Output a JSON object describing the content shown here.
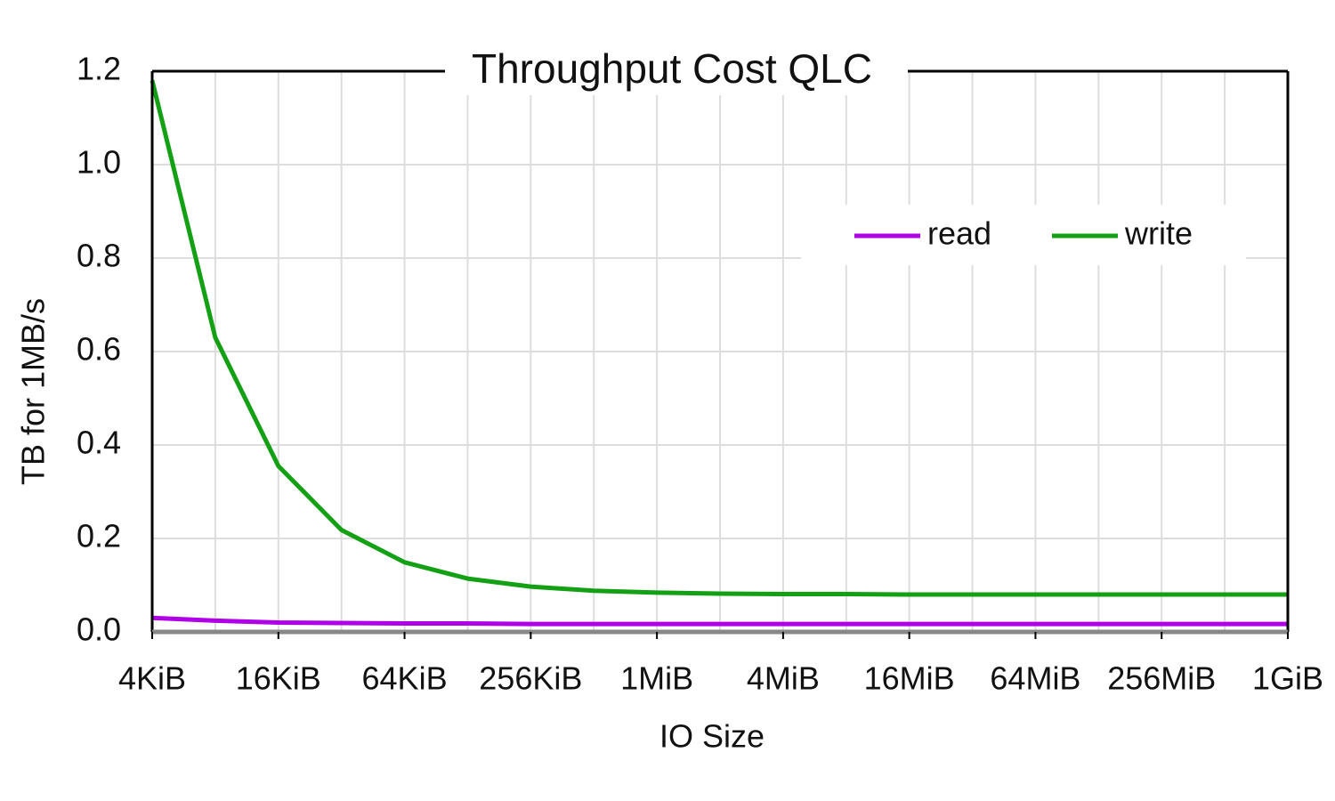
{
  "chart_data": {
    "type": "line",
    "title": "Throughput Cost QLC",
    "x_label": "IO Size",
    "y_label": "TB for 1MB/s",
    "x": [
      4096,
      8192,
      16384,
      32768,
      65536,
      131072,
      262144,
      524288,
      1048576,
      2097152,
      4194304,
      8388608,
      16777216,
      33554432,
      67108864,
      134217728,
      268435456,
      536870912,
      1073741824
    ],
    "series": [
      {
        "name": "read",
        "color": "#b000e8",
        "values": [
          0.03,
          0.024,
          0.02,
          0.019,
          0.018,
          0.018,
          0.017,
          0.017,
          0.017,
          0.017,
          0.017,
          0.017,
          0.017,
          0.017,
          0.017,
          0.017,
          0.017,
          0.017,
          0.017
        ]
      },
      {
        "name": "write",
        "color": "#14a014",
        "values": [
          1.18,
          0.63,
          0.355,
          0.218,
          0.149,
          0.114,
          0.097,
          0.088,
          0.084,
          0.082,
          0.081,
          0.081,
          0.08,
          0.08,
          0.08,
          0.08,
          0.08,
          0.08,
          0.08
        ]
      }
    ],
    "x_log_base": 2,
    "xlim": [
      4096,
      1073741824
    ],
    "xticks": [
      {
        "value": 4096,
        "label": "4KiB"
      },
      {
        "value": 16384,
        "label": "16KiB"
      },
      {
        "value": 65536,
        "label": "64KiB"
      },
      {
        "value": 262144,
        "label": "256KiB"
      },
      {
        "value": 1048576,
        "label": "1MiB"
      },
      {
        "value": 4194304,
        "label": "4MiB"
      },
      {
        "value": 16777216,
        "label": "16MiB"
      },
      {
        "value": 67108864,
        "label": "64MiB"
      },
      {
        "value": 268435456,
        "label": "256MiB"
      },
      {
        "value": 1073741824,
        "label": "1GiB"
      }
    ],
    "ylim": [
      0,
      1.2
    ],
    "yticks": [
      {
        "value": 0,
        "label": "0.0"
      },
      0.2,
      0.4,
      0.6,
      0.8,
      {
        "value": 1,
        "label": "1.0"
      },
      1.2
    ],
    "grid": true,
    "legend_position": "upper right"
  }
}
